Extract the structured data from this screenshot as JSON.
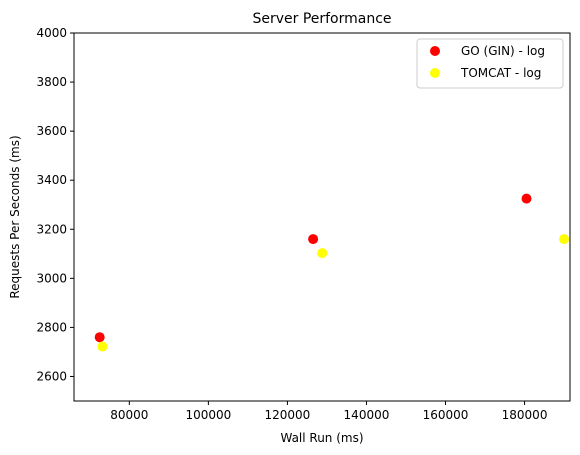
{
  "chart_data": {
    "type": "scatter",
    "title": "Server Performance",
    "xlabel": "Wall Run (ms)",
    "ylabel": "Requests Per Seconds (ms)",
    "xlim": [
      66000,
      191500
    ],
    "ylim": [
      2500,
      4000
    ],
    "xticks": [
      80000,
      100000,
      120000,
      140000,
      160000,
      180000
    ],
    "yticks": [
      2600,
      2800,
      3000,
      3200,
      3400,
      3600,
      3800,
      4000
    ],
    "xtick_labels": [
      "80000",
      "100000",
      "120000",
      "140000",
      "160000",
      "180000"
    ],
    "ytick_labels": [
      "2600",
      "2800",
      "3000",
      "3200",
      "3400",
      "3600",
      "3800",
      "4000"
    ],
    "grid": false,
    "legend_position": "upper-right",
    "series": [
      {
        "name": "GO (GIN) - log",
        "color": "#ff0000",
        "points": [
          {
            "x": 72500,
            "y": 2760
          },
          {
            "x": 126500,
            "y": 3160
          },
          {
            "x": 180500,
            "y": 3325
          }
        ]
      },
      {
        "name": "TOMCAT - log",
        "color": "#ffff00",
        "points": [
          {
            "x": 73200,
            "y": 2722
          },
          {
            "x": 128800,
            "y": 3103
          },
          {
            "x": 190000,
            "y": 3160
          }
        ]
      }
    ]
  }
}
